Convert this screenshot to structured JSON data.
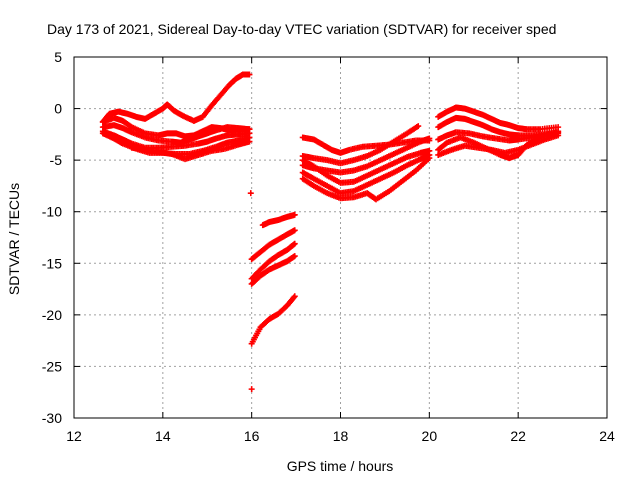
{
  "chart_data": {
    "type": "scatter",
    "title": "Day 173 of 2021, Sidereal Day-to-day VTEC variation (SDTVAR) for receiver sped",
    "xlabel": "GPS time / hours",
    "ylabel": "SDTVAR / TECUs",
    "xlim": [
      12,
      24
    ],
    "ylim": [
      -30,
      5
    ],
    "xticks": [
      12,
      14,
      16,
      18,
      20,
      22,
      24
    ],
    "yticks": [
      -30,
      -25,
      -20,
      -15,
      -10,
      -5,
      0,
      5
    ],
    "grid": true,
    "marker": "+",
    "color": "#ff0000",
    "series": [
      {
        "name": "p1",
        "x": [
          12.65,
          12.8,
          13.0,
          13.2,
          13.4,
          13.6,
          13.8,
          14.0,
          14.1,
          14.25,
          14.45,
          14.7,
          14.9,
          15.1,
          15.3,
          15.5,
          15.65,
          15.8,
          15.95
        ],
        "y": [
          -1.3,
          -0.5,
          -0.3,
          -0.5,
          -0.8,
          -1.0,
          -0.5,
          0.0,
          0.4,
          -0.2,
          -0.7,
          -1.2,
          -0.8,
          0.3,
          1.3,
          2.3,
          2.9,
          3.3,
          3.3
        ]
      },
      {
        "name": "p2",
        "x": [
          12.65,
          12.9,
          13.1,
          13.3,
          13.6,
          13.9,
          14.1,
          14.3,
          14.5,
          14.7,
          14.9,
          15.1,
          15.3,
          15.5,
          15.7,
          15.95
        ],
        "y": [
          -1.3,
          -0.9,
          -1.2,
          -1.8,
          -2.4,
          -2.6,
          -2.4,
          -2.4,
          -2.7,
          -2.6,
          -2.2,
          -1.8,
          -1.9,
          -2.1,
          -2.0,
          -2.0
        ]
      },
      {
        "name": "p3",
        "x": [
          12.65,
          12.9,
          13.1,
          13.3,
          13.6,
          13.9,
          14.2,
          14.4,
          14.6,
          14.8,
          15.0,
          15.2,
          15.45,
          15.7,
          15.95
        ],
        "y": [
          -1.8,
          -1.6,
          -1.9,
          -2.3,
          -2.8,
          -3.1,
          -3.2,
          -3.3,
          -3.0,
          -2.7,
          -2.4,
          -2.1,
          -1.8,
          -1.9,
          -2.0
        ]
      },
      {
        "name": "p4",
        "x": [
          12.65,
          12.9,
          13.1,
          13.3,
          13.6,
          13.9,
          14.2,
          14.5,
          14.8,
          15.0,
          15.2,
          15.45,
          15.7,
          15.95
        ],
        "y": [
          -2.2,
          -2.6,
          -3.0,
          -3.4,
          -3.8,
          -3.8,
          -3.7,
          -3.6,
          -3.4,
          -3.2,
          -2.9,
          -2.6,
          -2.5,
          -2.4
        ]
      },
      {
        "name": "p5",
        "x": [
          12.65,
          12.9,
          13.1,
          13.4,
          13.7,
          14.0,
          14.3,
          14.6,
          14.9,
          15.2,
          15.45,
          15.7,
          15.95
        ],
        "y": [
          -2.4,
          -2.9,
          -3.4,
          -3.9,
          -4.3,
          -4.3,
          -4.4,
          -4.4,
          -4.1,
          -3.7,
          -3.3,
          -3.1,
          -2.8
        ]
      },
      {
        "name": "p6",
        "x": [
          13.3,
          13.6,
          13.9,
          14.2,
          14.5,
          14.8,
          15.1,
          15.4,
          15.7,
          15.95
        ],
        "y": [
          -3.8,
          -4.0,
          -4.2,
          -4.4,
          -4.9,
          -4.5,
          -4.1,
          -3.9,
          -3.5,
          -3.2
        ]
      },
      {
        "name": "o1",
        "x": [
          15.98,
          16.0
        ],
        "y": [
          -8.2,
          -27.2
        ]
      },
      {
        "name": "d1",
        "x": [
          16.25,
          16.4,
          16.6,
          16.8,
          16.97
        ],
        "y": [
          -11.3,
          -11.0,
          -10.8,
          -10.5,
          -10.3
        ]
      },
      {
        "name": "d2",
        "x": [
          16.0,
          16.2,
          16.4,
          16.6,
          16.8,
          16.97
        ],
        "y": [
          -14.6,
          -13.9,
          -13.2,
          -12.7,
          -12.2,
          -11.8
        ]
      },
      {
        "name": "d3",
        "x": [
          16.0,
          16.2,
          16.4,
          16.6,
          16.8,
          16.97
        ],
        "y": [
          -16.5,
          -15.6,
          -14.8,
          -14.2,
          -13.7,
          -13.1
        ]
      },
      {
        "name": "d4",
        "x": [
          16.0,
          16.2,
          16.4,
          16.6,
          16.8,
          16.97
        ],
        "y": [
          -17.0,
          -16.2,
          -15.6,
          -15.2,
          -14.8,
          -14.3
        ]
      },
      {
        "name": "d5",
        "x": [
          16.0,
          16.2,
          16.4,
          16.6,
          16.8,
          16.97
        ],
        "y": [
          -22.8,
          -21.2,
          -20.4,
          -19.9,
          -19.1,
          -18.2
        ]
      },
      {
        "name": "e1",
        "x": [
          17.15,
          17.4,
          17.6,
          17.8,
          18.0,
          18.2,
          18.5,
          18.8,
          19.1,
          19.4,
          19.7,
          20.0
        ],
        "y": [
          -2.8,
          -3.0,
          -3.5,
          -4.0,
          -4.3,
          -4.0,
          -3.7,
          -3.6,
          -3.5,
          -3.3,
          -3.1,
          -3.1
        ]
      },
      {
        "name": "e2",
        "x": [
          17.15,
          17.4,
          17.7,
          18.0,
          18.3,
          18.6,
          18.9,
          19.2,
          19.5,
          19.75
        ],
        "y": [
          -4.6,
          -4.8,
          -5.0,
          -5.3,
          -5.0,
          -4.6,
          -4.0,
          -3.2,
          -2.4,
          -1.7
        ]
      },
      {
        "name": "e3",
        "x": [
          17.15,
          17.4,
          17.7,
          18.0,
          18.3,
          18.6,
          18.9,
          19.2,
          19.5,
          19.8,
          20.0
        ],
        "y": [
          -5.5,
          -5.8,
          -6.0,
          -6.2,
          -6.0,
          -5.6,
          -5.0,
          -4.4,
          -3.8,
          -3.2,
          -2.9
        ]
      },
      {
        "name": "e4",
        "x": [
          17.15,
          17.4,
          17.7,
          18.0,
          18.3,
          18.6,
          18.9,
          19.2,
          19.5,
          19.8,
          20.0
        ],
        "y": [
          -5.0,
          -5.6,
          -6.5,
          -7.2,
          -7.1,
          -6.5,
          -5.9,
          -5.3,
          -4.7,
          -4.3,
          -4.1
        ]
      },
      {
        "name": "e5",
        "x": [
          17.15,
          17.4,
          17.7,
          18.0,
          18.3,
          18.6,
          18.9,
          19.2,
          19.5,
          19.8,
          20.0
        ],
        "y": [
          -6.2,
          -6.8,
          -7.5,
          -8.2,
          -8.0,
          -7.4,
          -6.8,
          -6.2,
          -5.5,
          -4.9,
          -4.5
        ]
      },
      {
        "name": "e6",
        "x": [
          17.15,
          17.4,
          17.7,
          18.0,
          18.3,
          18.6,
          18.8,
          19.1,
          19.4,
          19.7,
          20.0
        ],
        "y": [
          -6.8,
          -7.5,
          -8.2,
          -8.7,
          -8.6,
          -8.2,
          -8.8,
          -8.0,
          -7.0,
          -6.0,
          -4.8
        ]
      },
      {
        "name": "f1",
        "x": [
          20.2,
          20.4,
          20.6,
          20.8,
          21.0,
          21.2,
          21.4,
          21.6,
          21.8,
          22.0,
          22.2,
          22.5,
          22.9
        ],
        "y": [
          -0.8,
          -0.3,
          0.1,
          0.0,
          -0.3,
          -0.6,
          -1.0,
          -1.4,
          -1.6,
          -1.9,
          -2.0,
          -2.0,
          -1.8
        ]
      },
      {
        "name": "f2",
        "x": [
          20.2,
          20.4,
          20.6,
          20.8,
          21.0,
          21.2,
          21.4,
          21.6,
          21.8,
          22.0,
          22.3,
          22.6,
          22.9
        ],
        "y": [
          -1.8,
          -1.3,
          -0.9,
          -1.0,
          -1.3,
          -1.6,
          -2.0,
          -2.3,
          -2.5,
          -2.6,
          -2.6,
          -2.5,
          -2.3
        ]
      },
      {
        "name": "f3",
        "x": [
          20.2,
          20.4,
          20.6,
          20.9,
          21.2,
          21.5,
          21.8,
          22.0,
          22.3,
          22.6,
          22.9
        ],
        "y": [
          -3.0,
          -2.6,
          -2.3,
          -2.4,
          -2.7,
          -2.9,
          -3.1,
          -3.0,
          -2.8,
          -2.6,
          -2.4
        ]
      },
      {
        "name": "f4",
        "x": [
          20.2,
          20.4,
          20.7,
          21.0,
          21.3,
          21.6,
          21.8,
          22.0,
          22.2,
          22.5,
          22.9
        ],
        "y": [
          -4.0,
          -3.3,
          -2.8,
          -3.3,
          -3.9,
          -4.5,
          -4.8,
          -4.5,
          -3.5,
          -2.7,
          -2.2
        ]
      },
      {
        "name": "f5",
        "x": [
          20.2,
          20.5,
          20.8,
          21.1,
          21.4,
          21.7,
          22.0,
          22.3,
          22.6,
          22.9
        ],
        "y": [
          -4.5,
          -4.0,
          -3.6,
          -3.8,
          -4.0,
          -4.3,
          -4.0,
          -3.5,
          -3.0,
          -2.6
        ]
      }
    ]
  }
}
